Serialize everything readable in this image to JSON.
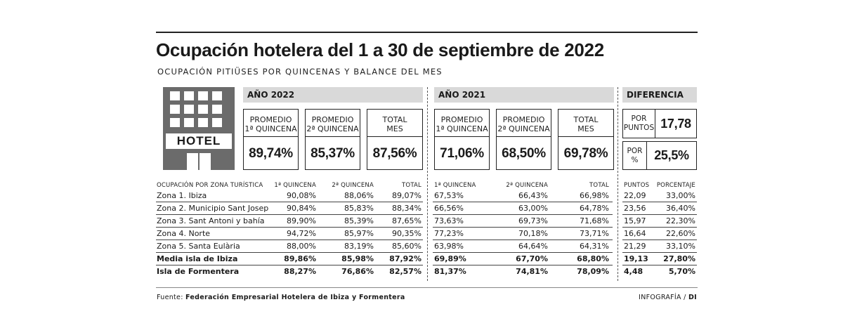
{
  "title": "Ocupación hotelera del 1 a 30 de septiembre de 2022",
  "subtitle": "OCUPACIÓN PITIÜSES POR QUINCENAS Y BALANCE DEL MES",
  "hotel_label": "HOTEL",
  "sections": {
    "y2022": "AÑO 2022",
    "y2021": "AÑO 2021",
    "diff": "DIFERENCIA"
  },
  "summary": {
    "y2022": [
      {
        "label1": "PROMEDIO",
        "label2": "1ª QUINCENA",
        "value": "89,74%"
      },
      {
        "label1": "PROMEDIO",
        "label2": "2ª QUINCENA",
        "value": "85,37%"
      },
      {
        "label1": "TOTAL",
        "label2": "MES",
        "value": "87,56%"
      }
    ],
    "y2021": [
      {
        "label1": "PROMEDIO",
        "label2": "1ª QUINCENA",
        "value": "71,06%"
      },
      {
        "label1": "PROMEDIO",
        "label2": "2ª QUINCENA",
        "value": "68,50%"
      },
      {
        "label1": "TOTAL",
        "label2": "MES",
        "value": "69,78%"
      }
    ],
    "diff": [
      {
        "label1": "POR",
        "label2": "PUNTOS",
        "value": "17,78"
      },
      {
        "label1": "POR",
        "label2": "%",
        "value": "25,5%"
      }
    ]
  },
  "table": {
    "headers": {
      "zone": "OCUPACIÓN POR ZONA TURÍSTICA",
      "q1_2022": "1ª QUINCENA",
      "q2_2022": "2ª QUINCENA",
      "total_2022": "TOTAL",
      "q1_2021": "1ª QUINCENA",
      "q2_2021": "2ª QUINCENA",
      "total_2021": "TOTAL",
      "points": "PUNTOS",
      "percent": "PORCENTAJE"
    },
    "rows": [
      {
        "zone": "Zona 1. Ibiza",
        "q1_2022": "90,08%",
        "q2_2022": "88,06%",
        "total_2022": "89,07%",
        "q1_2021": "67,53%",
        "q2_2021": "66,43%",
        "total_2021": "66,98%",
        "points": "22,09",
        "percent": "33,00%",
        "bold": false
      },
      {
        "zone": "Zona 2. Municipio Sant Josep",
        "q1_2022": "90,84%",
        "q2_2022": "85,83%",
        "total_2022": "88,34%",
        "q1_2021": "66,56%",
        "q2_2021": "63,00%",
        "total_2021": "64,78%",
        "points": "23,56",
        "percent": "36,40%",
        "bold": false
      },
      {
        "zone": "Zona 3. Sant Antoni y bahía",
        "q1_2022": "89,90%",
        "q2_2022": "85,39%",
        "total_2022": "87,65%",
        "q1_2021": "73,63%",
        "q2_2021": "69,73%",
        "total_2021": "71,68%",
        "points": "15,97",
        "percent": "22,30%",
        "bold": false
      },
      {
        "zone": "Zona 4. Norte",
        "q1_2022": "94,72%",
        "q2_2022": "85,97%",
        "total_2022": "90,35%",
        "q1_2021": "77,23%",
        "q2_2021": "70,18%",
        "total_2021": "73,71%",
        "points": "16,64",
        "percent": "22,60%",
        "bold": false
      },
      {
        "zone": "Zona 5. Santa Eulària",
        "q1_2022": "88,00%",
        "q2_2022": "83,19%",
        "total_2022": "85,60%",
        "q1_2021": "63,98%",
        "q2_2021": "64,64%",
        "total_2021": "64,31%",
        "points": "21,29",
        "percent": "33,10%",
        "bold": false
      },
      {
        "zone": "Media isla de Ibiza",
        "q1_2022": "89,86%",
        "q2_2022": "85,98%",
        "total_2022": "87,92%",
        "q1_2021": "69,89%",
        "q2_2021": "67,70%",
        "total_2021": "68,80%",
        "points": "19,13",
        "percent": "27,80%",
        "bold": true
      },
      {
        "zone": "Isla de Formentera",
        "q1_2022": "88,27%",
        "q2_2022": "76,86%",
        "total_2022": "82,57%",
        "q1_2021": "81,37%",
        "q2_2021": "74,81%",
        "total_2021": "78,09%",
        "points": "4,48",
        "percent": "5,70%",
        "bold": true
      }
    ]
  },
  "footer": {
    "source_label": "Fuente:",
    "source_text": "Federación Empresarial Hotelera de Ibiza y Formentera",
    "credit_label": "INFOGRAFÍA /",
    "credit_brand": "DI"
  },
  "chart_data": {
    "type": "table",
    "title": "Ocupación hotelera del 1 a 30 de septiembre de 2022",
    "subtitle": "OCUPACIÓN PITIÜSES POR QUINCENAS Y BALANCE DEL MES",
    "columns": [
      "OCUPACIÓN POR ZONA TURÍSTICA",
      "1ª QUINCENA",
      "2ª QUINCENA",
      "TOTAL",
      "1ª QUINCENA",
      "2ª QUINCENA",
      "TOTAL",
      "PUNTOS",
      "PORCENTAJE"
    ],
    "column_groups": [
      "AÑO 2022",
      "AÑO 2021",
      "DIFERENCIA"
    ],
    "categories": [
      "Zona 1. Ibiza",
      "Zona 2. Municipio Sant Josep",
      "Zona 3. Sant Antoni y bahía",
      "Zona 4. Norte",
      "Zona 5. Santa Eulària",
      "Media isla de Ibiza",
      "Isla de Formentera"
    ],
    "series": [
      {
        "name": "AÑO 2022 1ª QUINCENA",
        "values": [
          90.08,
          90.84,
          89.9,
          94.72,
          88.0,
          89.86,
          88.27
        ]
      },
      {
        "name": "AÑO 2022 2ª QUINCENA",
        "values": [
          88.06,
          85.83,
          85.39,
          85.97,
          83.19,
          85.98,
          76.86
        ]
      },
      {
        "name": "AÑO 2022 TOTAL",
        "values": [
          89.07,
          88.34,
          87.65,
          90.35,
          85.6,
          87.92,
          82.57
        ]
      },
      {
        "name": "AÑO 2021 1ª QUINCENA",
        "values": [
          67.53,
          66.56,
          73.63,
          77.23,
          63.98,
          69.89,
          81.37
        ]
      },
      {
        "name": "AÑO 2021 2ª QUINCENA",
        "values": [
          66.43,
          63.0,
          69.73,
          70.18,
          64.64,
          67.7,
          74.81
        ]
      },
      {
        "name": "AÑO 2021 TOTAL",
        "values": [
          66.98,
          64.78,
          71.68,
          73.71,
          64.31,
          68.8,
          78.09
        ]
      },
      {
        "name": "DIFERENCIA PUNTOS",
        "values": [
          22.09,
          23.56,
          15.97,
          16.64,
          21.29,
          19.13,
          4.48
        ]
      },
      {
        "name": "DIFERENCIA PORCENTAJE",
        "values": [
          33.0,
          36.4,
          22.3,
          22.6,
          33.1,
          27.8,
          5.7
        ]
      }
    ]
  }
}
